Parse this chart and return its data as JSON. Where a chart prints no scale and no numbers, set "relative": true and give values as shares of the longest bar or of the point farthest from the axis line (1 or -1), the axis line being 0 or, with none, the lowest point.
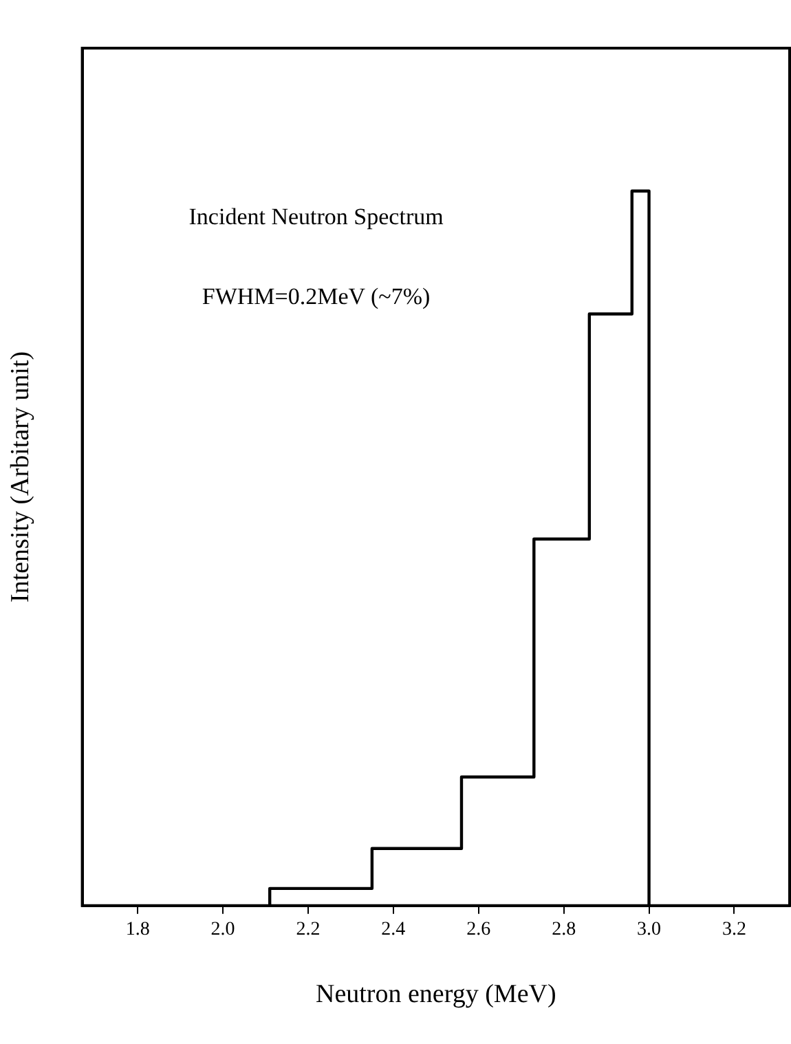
{
  "chart_data": {
    "type": "step",
    "xlabel": "Neutron energy (MeV)",
    "ylabel": "Intensity (Arbitary unit)",
    "annotations": [
      "Incident Neutron Spectrum",
      "FWHM=0.2MeV (~7%)"
    ],
    "x": [
      2.11,
      2.11,
      2.35,
      2.56,
      2.73,
      2.86,
      2.96,
      3.0
    ],
    "values": [
      0,
      0.024,
      0.08,
      0.18,
      0.513,
      0.828,
      1,
      0
    ],
    "relative": true,
    "color": "#000000",
    "xlim": [
      1.67,
      3.33
    ],
    "xticks": [
      {
        "value": 1.8,
        "label": "1.8"
      },
      {
        "value": 2.0,
        "label": "2.0"
      },
      {
        "value": 2.2,
        "label": "2.2"
      },
      {
        "value": 2.4,
        "label": "2.4"
      },
      {
        "value": 2.6,
        "label": "2.6"
      },
      {
        "value": 2.8,
        "label": "2.8"
      },
      {
        "value": 3.0,
        "label": "3.0"
      },
      {
        "value": 3.2,
        "label": "3.2"
      }
    ],
    "grid": false,
    "legend": false,
    "marker": "none"
  }
}
